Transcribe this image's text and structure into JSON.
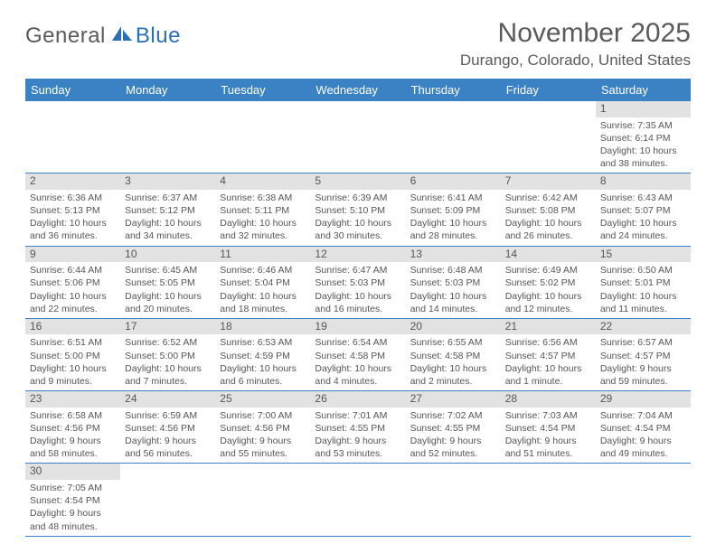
{
  "logo": {
    "text1": "General",
    "text2": "Blue"
  },
  "title": "November 2025",
  "location": "Durango, Colorado, United States",
  "weekday_header": {
    "bg_color": "#3b82c4",
    "text_color": "#ffffff"
  },
  "daynum_bg": "#e2e2e2",
  "border_color": "#3b82c4",
  "weekdays": [
    "Sunday",
    "Monday",
    "Tuesday",
    "Wednesday",
    "Thursday",
    "Friday",
    "Saturday"
  ],
  "weeks": [
    [
      {
        "empty": true
      },
      {
        "empty": true
      },
      {
        "empty": true
      },
      {
        "empty": true
      },
      {
        "empty": true
      },
      {
        "empty": true
      },
      {
        "day": "1",
        "sunrise": "Sunrise: 7:35 AM",
        "sunset": "Sunset: 6:14 PM",
        "daylight": "Daylight: 10 hours and 38 minutes."
      }
    ],
    [
      {
        "day": "2",
        "sunrise": "Sunrise: 6:36 AM",
        "sunset": "Sunset: 5:13 PM",
        "daylight": "Daylight: 10 hours and 36 minutes."
      },
      {
        "day": "3",
        "sunrise": "Sunrise: 6:37 AM",
        "sunset": "Sunset: 5:12 PM",
        "daylight": "Daylight: 10 hours and 34 minutes."
      },
      {
        "day": "4",
        "sunrise": "Sunrise: 6:38 AM",
        "sunset": "Sunset: 5:11 PM",
        "daylight": "Daylight: 10 hours and 32 minutes."
      },
      {
        "day": "5",
        "sunrise": "Sunrise: 6:39 AM",
        "sunset": "Sunset: 5:10 PM",
        "daylight": "Daylight: 10 hours and 30 minutes."
      },
      {
        "day": "6",
        "sunrise": "Sunrise: 6:41 AM",
        "sunset": "Sunset: 5:09 PM",
        "daylight": "Daylight: 10 hours and 28 minutes."
      },
      {
        "day": "7",
        "sunrise": "Sunrise: 6:42 AM",
        "sunset": "Sunset: 5:08 PM",
        "daylight": "Daylight: 10 hours and 26 minutes."
      },
      {
        "day": "8",
        "sunrise": "Sunrise: 6:43 AM",
        "sunset": "Sunset: 5:07 PM",
        "daylight": "Daylight: 10 hours and 24 minutes."
      }
    ],
    [
      {
        "day": "9",
        "sunrise": "Sunrise: 6:44 AM",
        "sunset": "Sunset: 5:06 PM",
        "daylight": "Daylight: 10 hours and 22 minutes."
      },
      {
        "day": "10",
        "sunrise": "Sunrise: 6:45 AM",
        "sunset": "Sunset: 5:05 PM",
        "daylight": "Daylight: 10 hours and 20 minutes."
      },
      {
        "day": "11",
        "sunrise": "Sunrise: 6:46 AM",
        "sunset": "Sunset: 5:04 PM",
        "daylight": "Daylight: 10 hours and 18 minutes."
      },
      {
        "day": "12",
        "sunrise": "Sunrise: 6:47 AM",
        "sunset": "Sunset: 5:03 PM",
        "daylight": "Daylight: 10 hours and 16 minutes."
      },
      {
        "day": "13",
        "sunrise": "Sunrise: 6:48 AM",
        "sunset": "Sunset: 5:03 PM",
        "daylight": "Daylight: 10 hours and 14 minutes."
      },
      {
        "day": "14",
        "sunrise": "Sunrise: 6:49 AM",
        "sunset": "Sunset: 5:02 PM",
        "daylight": "Daylight: 10 hours and 12 minutes."
      },
      {
        "day": "15",
        "sunrise": "Sunrise: 6:50 AM",
        "sunset": "Sunset: 5:01 PM",
        "daylight": "Daylight: 10 hours and 11 minutes."
      }
    ],
    [
      {
        "day": "16",
        "sunrise": "Sunrise: 6:51 AM",
        "sunset": "Sunset: 5:00 PM",
        "daylight": "Daylight: 10 hours and 9 minutes."
      },
      {
        "day": "17",
        "sunrise": "Sunrise: 6:52 AM",
        "sunset": "Sunset: 5:00 PM",
        "daylight": "Daylight: 10 hours and 7 minutes."
      },
      {
        "day": "18",
        "sunrise": "Sunrise: 6:53 AM",
        "sunset": "Sunset: 4:59 PM",
        "daylight": "Daylight: 10 hours and 6 minutes."
      },
      {
        "day": "19",
        "sunrise": "Sunrise: 6:54 AM",
        "sunset": "Sunset: 4:58 PM",
        "daylight": "Daylight: 10 hours and 4 minutes."
      },
      {
        "day": "20",
        "sunrise": "Sunrise: 6:55 AM",
        "sunset": "Sunset: 4:58 PM",
        "daylight": "Daylight: 10 hours and 2 minutes."
      },
      {
        "day": "21",
        "sunrise": "Sunrise: 6:56 AM",
        "sunset": "Sunset: 4:57 PM",
        "daylight": "Daylight: 10 hours and 1 minute."
      },
      {
        "day": "22",
        "sunrise": "Sunrise: 6:57 AM",
        "sunset": "Sunset: 4:57 PM",
        "daylight": "Daylight: 9 hours and 59 minutes."
      }
    ],
    [
      {
        "day": "23",
        "sunrise": "Sunrise: 6:58 AM",
        "sunset": "Sunset: 4:56 PM",
        "daylight": "Daylight: 9 hours and 58 minutes."
      },
      {
        "day": "24",
        "sunrise": "Sunrise: 6:59 AM",
        "sunset": "Sunset: 4:56 PM",
        "daylight": "Daylight: 9 hours and 56 minutes."
      },
      {
        "day": "25",
        "sunrise": "Sunrise: 7:00 AM",
        "sunset": "Sunset: 4:56 PM",
        "daylight": "Daylight: 9 hours and 55 minutes."
      },
      {
        "day": "26",
        "sunrise": "Sunrise: 7:01 AM",
        "sunset": "Sunset: 4:55 PM",
        "daylight": "Daylight: 9 hours and 53 minutes."
      },
      {
        "day": "27",
        "sunrise": "Sunrise: 7:02 AM",
        "sunset": "Sunset: 4:55 PM",
        "daylight": "Daylight: 9 hours and 52 minutes."
      },
      {
        "day": "28",
        "sunrise": "Sunrise: 7:03 AM",
        "sunset": "Sunset: 4:54 PM",
        "daylight": "Daylight: 9 hours and 51 minutes."
      },
      {
        "day": "29",
        "sunrise": "Sunrise: 7:04 AM",
        "sunset": "Sunset: 4:54 PM",
        "daylight": "Daylight: 9 hours and 49 minutes."
      }
    ],
    [
      {
        "day": "30",
        "sunrise": "Sunrise: 7:05 AM",
        "sunset": "Sunset: 4:54 PM",
        "daylight": "Daylight: 9 hours and 48 minutes."
      },
      {
        "empty": true
      },
      {
        "empty": true
      },
      {
        "empty": true
      },
      {
        "empty": true
      },
      {
        "empty": true
      },
      {
        "empty": true
      }
    ]
  ]
}
